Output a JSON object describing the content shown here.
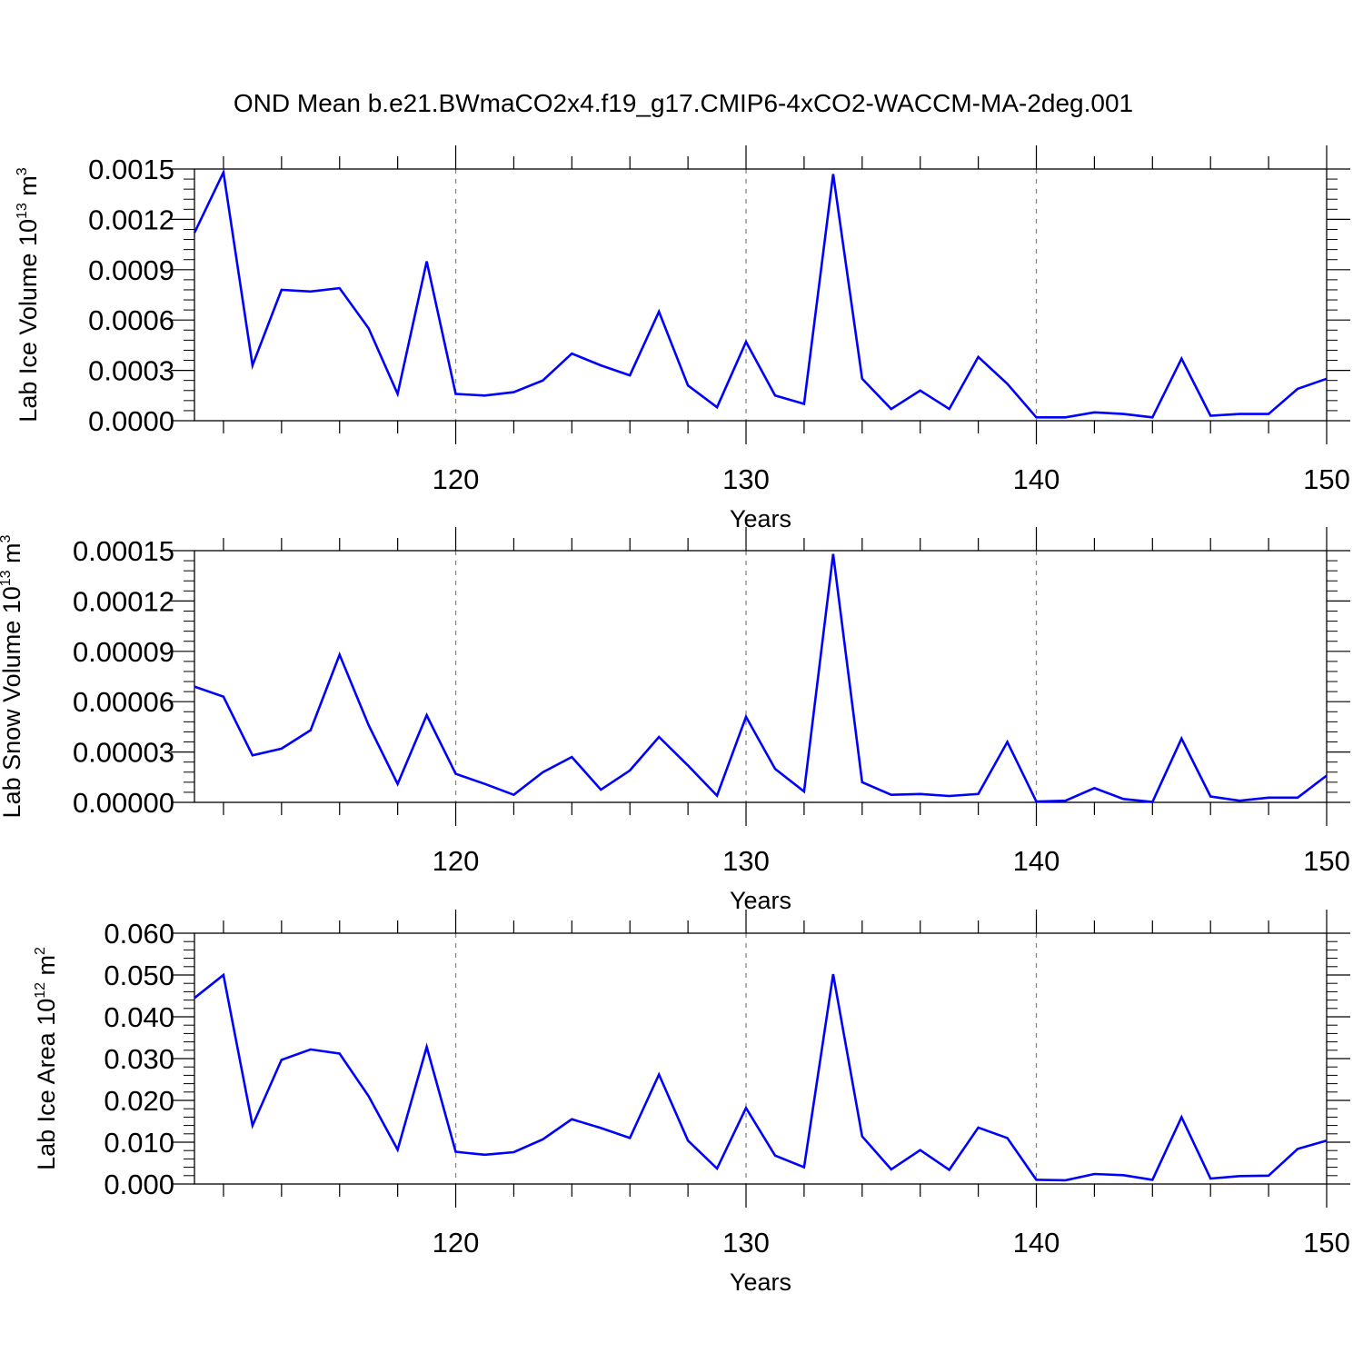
{
  "title": "OND Mean b.e21.BWmaCO2x4.f19_g17.CMIP6-4xCO2-WACCM-MA-2deg.001",
  "colors": {
    "line": "#0000ff",
    "axis": "#000000",
    "grid": "#888888"
  },
  "chart_data": [
    {
      "type": "line",
      "ylabel": {
        "base": "Lab Ice Volume 10",
        "exp": "13",
        "unit": " m",
        "unit_exp": "3"
      },
      "xlabel": "Years",
      "xlim": [
        111,
        150
      ],
      "ylim": [
        0,
        0.0015
      ],
      "yticks": [
        0,
        0.0003,
        0.0006,
        0.0009,
        0.0012,
        0.0015
      ],
      "ytick_labels": [
        "0.0000",
        "0.0003",
        "0.0006",
        "0.0009",
        "0.0012",
        "0.0015"
      ],
      "xticks": [
        120,
        130,
        140,
        150
      ],
      "xtick_labels": [
        "120",
        "130",
        "140",
        "150"
      ],
      "grid_x": [
        120,
        130,
        140
      ],
      "x": [
        111,
        112,
        113,
        114,
        115,
        116,
        117,
        118,
        119,
        120,
        121,
        122,
        123,
        124,
        125,
        126,
        127,
        128,
        129,
        130,
        131,
        132,
        133,
        134,
        135,
        136,
        137,
        138,
        139,
        140,
        141,
        142,
        143,
        144,
        145,
        146,
        147,
        148,
        149,
        150
      ],
      "series": [
        {
          "values": [
            0.00112,
            0.00148,
            0.00033,
            0.00078,
            0.00077,
            0.00079,
            0.00055,
            0.00016,
            0.00095,
            0.00016,
            0.00015,
            0.00017,
            0.00024,
            0.0004,
            0.00033,
            0.00027,
            0.00065,
            0.00021,
            8e-05,
            0.00047,
            0.00015,
            0.0001,
            0.00147,
            0.00025,
            7e-05,
            0.00018,
            7e-05,
            0.00038,
            0.00022,
            2e-05,
            2e-05,
            5e-05,
            4e-05,
            2e-05,
            0.00037,
            3e-05,
            4e-05,
            4e-05,
            0.00019,
            0.00025
          ]
        }
      ]
    },
    {
      "type": "line",
      "ylabel": {
        "base": "Lab Snow Volume 10",
        "exp": "13",
        "unit": " m",
        "unit_exp": "3"
      },
      "xlabel": "Years",
      "xlim": [
        111,
        150
      ],
      "ylim": [
        0,
        0.00015
      ],
      "yticks": [
        0,
        3e-05,
        6e-05,
        9e-05,
        0.00012,
        0.00015
      ],
      "ytick_labels": [
        "0.00000",
        "0.00003",
        "0.00006",
        "0.00009",
        "0.00012",
        "0.00015"
      ],
      "xticks": [
        120,
        130,
        140,
        150
      ],
      "xtick_labels": [
        "120",
        "130",
        "140",
        "150"
      ],
      "grid_x": [
        120,
        130,
        140
      ],
      "x": [
        111,
        112,
        113,
        114,
        115,
        116,
        117,
        118,
        119,
        120,
        121,
        122,
        123,
        124,
        125,
        126,
        127,
        128,
        129,
        130,
        131,
        132,
        133,
        134,
        135,
        136,
        137,
        138,
        139,
        140,
        141,
        142,
        143,
        144,
        145,
        146,
        147,
        148,
        149,
        150
      ],
      "series": [
        {
          "values": [
            6.9e-05,
            6.3e-05,
            2.8e-05,
            3.2e-05,
            4.3e-05,
            8.8e-05,
            4.6e-05,
            1.1e-05,
            5.2e-05,
            1.7e-05,
            1.1e-05,
            4.5e-06,
            1.8e-05,
            2.7e-05,
            7.5e-06,
            1.9e-05,
            3.9e-05,
            2.2e-05,
            4e-06,
            5.1e-05,
            2e-05,
            6.5e-06,
            0.000148,
            1.2e-05,
            4.5e-06,
            5e-06,
            3.8e-06,
            5e-06,
            3.6e-05,
            5e-07,
            1e-06,
            8.5e-06,
            2e-06,
            2e-07,
            3.8e-05,
            3.5e-06,
            1e-06,
            2.8e-06,
            2.8e-06,
            1.6e-05
          ]
        }
      ]
    },
    {
      "type": "line",
      "ylabel": {
        "base": "Lab Ice Area 10",
        "exp": "12",
        "unit": " m",
        "unit_exp": "2"
      },
      "xlabel": "Years",
      "xlim": [
        111,
        150
      ],
      "ylim": [
        0,
        0.06
      ],
      "yticks": [
        0,
        0.01,
        0.02,
        0.03,
        0.04,
        0.05,
        0.06
      ],
      "ytick_labels": [
        "0.000",
        "0.010",
        "0.020",
        "0.030",
        "0.040",
        "0.050",
        "0.060"
      ],
      "xticks": [
        120,
        130,
        140,
        150
      ],
      "xtick_labels": [
        "120",
        "130",
        "140",
        "150"
      ],
      "grid_x": [
        120,
        130,
        140
      ],
      "x": [
        111,
        112,
        113,
        114,
        115,
        116,
        117,
        118,
        119,
        120,
        121,
        122,
        123,
        124,
        125,
        126,
        127,
        128,
        129,
        130,
        131,
        132,
        133,
        134,
        135,
        136,
        137,
        138,
        139,
        140,
        141,
        142,
        143,
        144,
        145,
        146,
        147,
        148,
        149,
        150
      ],
      "series": [
        {
          "values": [
            0.0445,
            0.05,
            0.014,
            0.0297,
            0.0322,
            0.0312,
            0.021,
            0.0082,
            0.0328,
            0.0077,
            0.007,
            0.0076,
            0.0107,
            0.0155,
            0.0134,
            0.011,
            0.0262,
            0.0104,
            0.0037,
            0.0182,
            0.0068,
            0.004,
            0.0502,
            0.0114,
            0.0035,
            0.0081,
            0.0034,
            0.0135,
            0.011,
            0.001,
            0.0009,
            0.0024,
            0.0021,
            0.001,
            0.016,
            0.0013,
            0.0019,
            0.002,
            0.0084,
            0.0104
          ]
        }
      ]
    }
  ]
}
